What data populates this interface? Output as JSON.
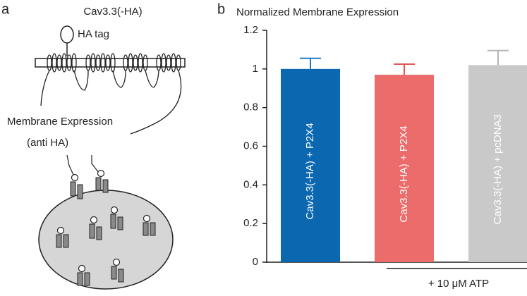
{
  "panel_a": {
    "label": "a",
    "protein": "Cav3.3(-HA)",
    "tag": "HA tag",
    "readout": "Membrane Expression",
    "antibody": "(anti HA)"
  },
  "chart_data": {
    "type": "bar",
    "panel_label": "b",
    "title": "Normalized Membrane Expression",
    "categories": [
      "Cav3.3(-HA) + P2X4",
      "Cav3.3(-HA) + P2X4",
      "Cav3.3(-HA) + pcDNA3"
    ],
    "values": [
      1.0,
      0.97,
      1.02
    ],
    "errors": [
      0.055,
      0.055,
      0.075
    ],
    "colors": [
      "#0a67b0",
      "#ec6b6b",
      "#c9c9c9"
    ],
    "error_colors": [
      "#1a7cc4",
      "#e05555",
      "#b5b5b5"
    ],
    "ylim": [
      0,
      1.2
    ],
    "yticks": [
      0,
      0.2,
      0.4,
      0.6,
      0.8,
      1,
      1.2
    ],
    "annotation": "+ 10 μM ATP"
  }
}
